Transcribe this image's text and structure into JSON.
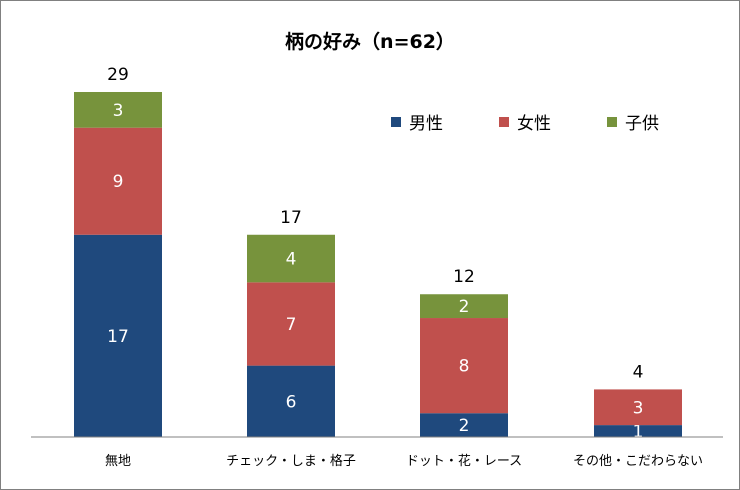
{
  "chart_data": {
    "type": "bar",
    "stacked": true,
    "title": "柄の好み（n=62）",
    "categories": [
      "無地",
      "チェック・しま・格子",
      "ドット・花・レース",
      "その他・こだわらない"
    ],
    "series": [
      {
        "name": "男性",
        "color": "#1f497d",
        "values": [
          17,
          6,
          2,
          1
        ]
      },
      {
        "name": "女性",
        "color": "#c0504d",
        "values": [
          9,
          7,
          8,
          3
        ]
      },
      {
        "name": "子供",
        "color": "#77933c",
        "values": [
          3,
          4,
          2,
          0
        ]
      }
    ],
    "totals": [
      29,
      17,
      12,
      4
    ],
    "ylim": [
      0,
      29
    ],
    "legend_position": "top-right",
    "grid": false
  }
}
